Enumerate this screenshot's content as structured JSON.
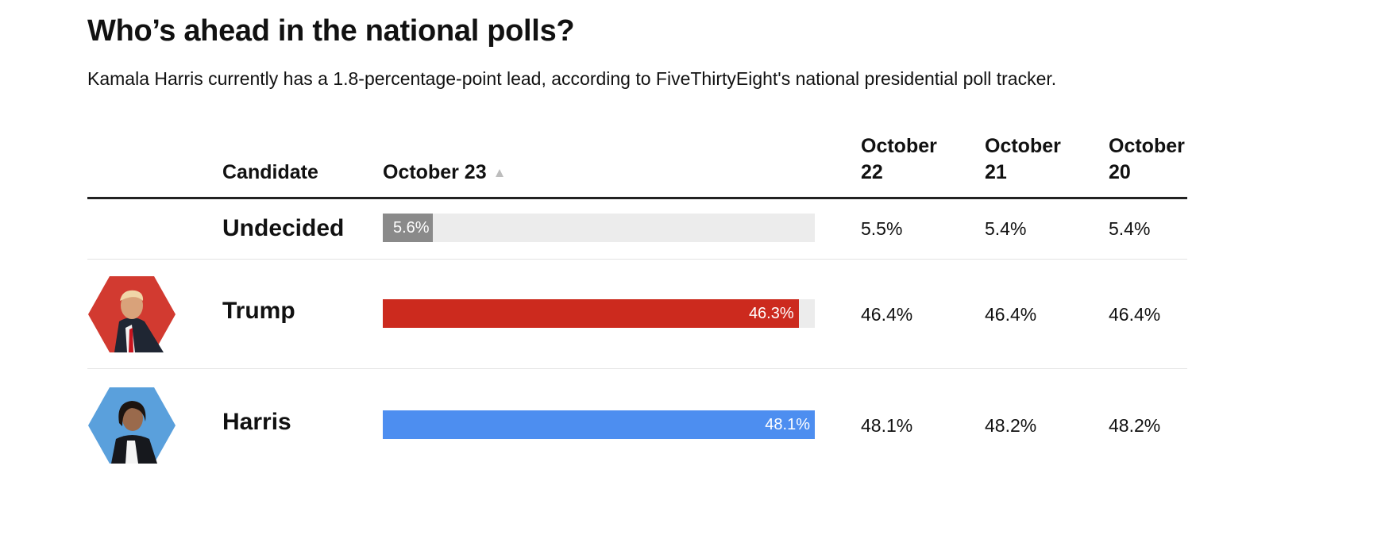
{
  "title": "Who’s ahead in the national polls?",
  "subtitle": "Kamala Harris currently has a 1.8-percentage-point lead, according to FiveThirtyEight's national presidential poll tracker.",
  "chart_data": {
    "type": "bar",
    "orientation": "horizontal",
    "xlim": [
      0,
      48.1
    ],
    "columns": {
      "candidate": "Candidate",
      "current": "October 23",
      "prior": [
        "October 22",
        "October 21",
        "October 20"
      ]
    },
    "rows": [
      {
        "name": "Undecided",
        "value": 5.6,
        "label": "5.6%",
        "color": "#8a8a8a",
        "history": [
          "5.5%",
          "5.4%",
          "5.4%"
        ]
      },
      {
        "name": "Trump",
        "value": 46.3,
        "label": "46.3%",
        "color": "#cc2a1e",
        "avatar_color": "#d23a30",
        "avatar_icon": "trump-photo-icon",
        "history": [
          "46.4%",
          "46.4%",
          "46.4%"
        ]
      },
      {
        "name": "Harris",
        "value": 48.1,
        "label": "48.1%",
        "color": "#4d8ef0",
        "avatar_color": "#5aa0dc",
        "avatar_icon": "harris-photo-icon",
        "history": [
          "48.1%",
          "48.2%",
          "48.2%"
        ]
      }
    ]
  }
}
